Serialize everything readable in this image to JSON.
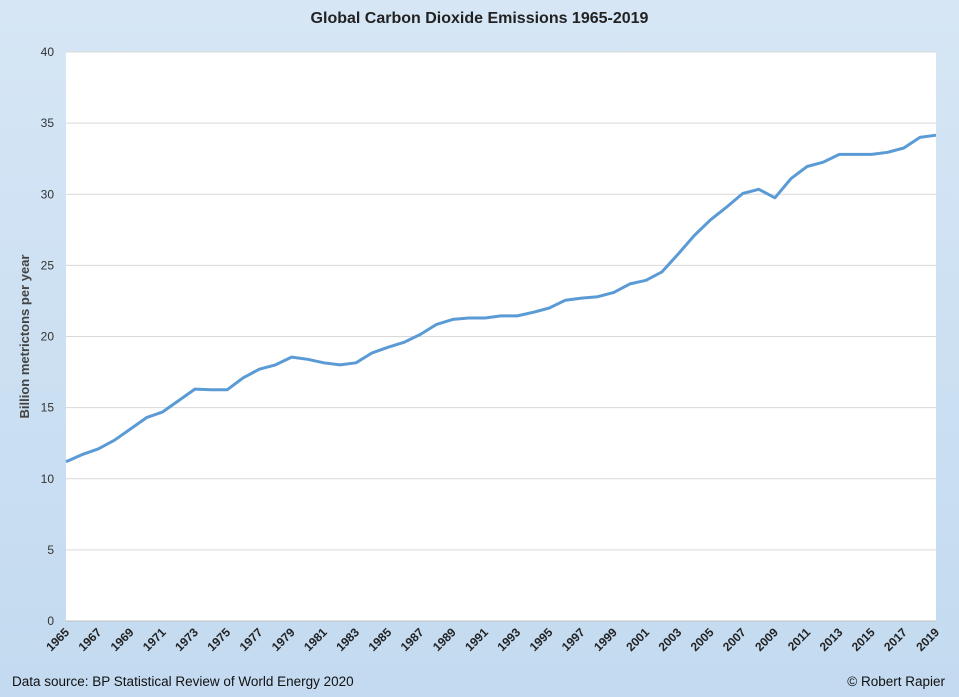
{
  "chart_data": {
    "type": "line",
    "title": "Global Carbon Dioxide Emissions 1965-2019",
    "xlabel": "",
    "ylabel": "Billion metrictons per year",
    "ylim": [
      0,
      40
    ],
    "yticks": [
      0,
      5,
      10,
      15,
      20,
      25,
      30,
      35,
      40
    ],
    "grid": true,
    "line_color": "#5b9bd5",
    "x": [
      1965,
      1966,
      1967,
      1968,
      1969,
      1970,
      1971,
      1972,
      1973,
      1974,
      1975,
      1976,
      1977,
      1978,
      1979,
      1980,
      1981,
      1982,
      1983,
      1984,
      1985,
      1986,
      1987,
      1988,
      1989,
      1990,
      1991,
      1992,
      1993,
      1994,
      1995,
      1996,
      1997,
      1998,
      1999,
      2000,
      2001,
      2002,
      2003,
      2004,
      2005,
      2006,
      2007,
      2008,
      2009,
      2010,
      2011,
      2012,
      2013,
      2014,
      2015,
      2016,
      2017,
      2018,
      2019
    ],
    "values": [
      11.2,
      11.7,
      12.1,
      12.7,
      13.5,
      14.3,
      14.7,
      15.5,
      16.3,
      16.25,
      16.25,
      17.1,
      17.7,
      18.0,
      18.55,
      18.4,
      18.15,
      18.0,
      18.15,
      18.85,
      19.25,
      19.6,
      20.15,
      20.85,
      21.2,
      21.3,
      21.3,
      21.45,
      21.45,
      21.7,
      22.0,
      22.55,
      22.7,
      22.8,
      23.1,
      23.7,
      23.95,
      24.55,
      25.8,
      27.1,
      28.2,
      29.1,
      30.05,
      30.35,
      29.75,
      31.1,
      31.95,
      32.25,
      32.8,
      32.8,
      32.8,
      32.95,
      33.25,
      34.0,
      34.15
    ],
    "xticks": [
      1965,
      1967,
      1969,
      1971,
      1973,
      1975,
      1977,
      1979,
      1981,
      1983,
      1985,
      1987,
      1989,
      1991,
      1993,
      1995,
      1997,
      1999,
      2001,
      2003,
      2005,
      2007,
      2009,
      2011,
      2013,
      2015,
      2017,
      2019
    ]
  },
  "footer": {
    "source": "Data source: BP Statistical Review of World Energy 2020",
    "credit": "© Robert Rapier"
  }
}
